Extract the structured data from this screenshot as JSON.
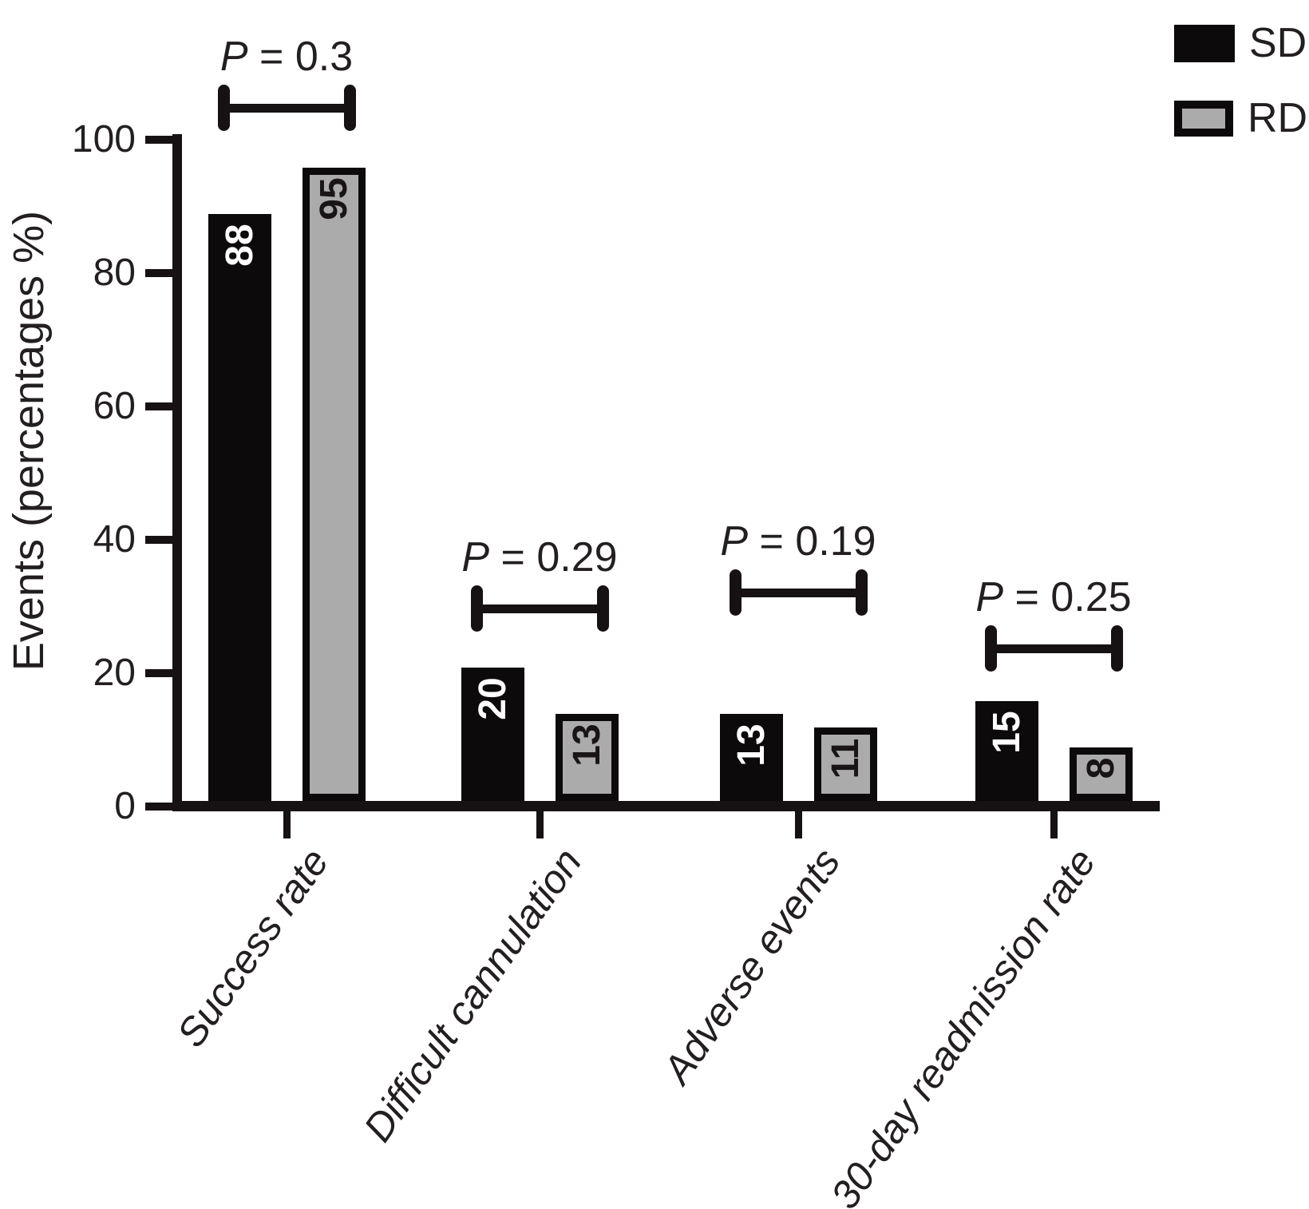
{
  "chart_data": {
    "type": "bar",
    "title": "",
    "ylabel": "Events (percentages %)",
    "xlabel": "",
    "ylim": [
      0,
      100
    ],
    "yticks": [
      0,
      20,
      40,
      60,
      80,
      100
    ],
    "grid": false,
    "legend_position": "top-right",
    "categories": [
      "Success rate",
      "Difficult cannulation",
      "Adverse events",
      "30-day readmission rate"
    ],
    "series": [
      {
        "name": "SD",
        "values": [
          88,
          20,
          13,
          15
        ]
      },
      {
        "name": "RD",
        "values": [
          95,
          13,
          11,
          8
        ]
      }
    ],
    "p_label": "P",
    "p_values": [
      "0.3",
      "0.29",
      "0.19",
      "0.25"
    ],
    "colors": {
      "sd_fill": "#0d0a0b",
      "rd_fill": "#ababab",
      "rd_border": "#0d0a0b",
      "axis_ink": "#161112",
      "text_ink": "#231f20",
      "value_on_sd": "#ffffff",
      "value_on_rd": "#191516"
    }
  },
  "legend": {
    "items": [
      {
        "label": "SD"
      },
      {
        "label": "RD"
      }
    ]
  }
}
